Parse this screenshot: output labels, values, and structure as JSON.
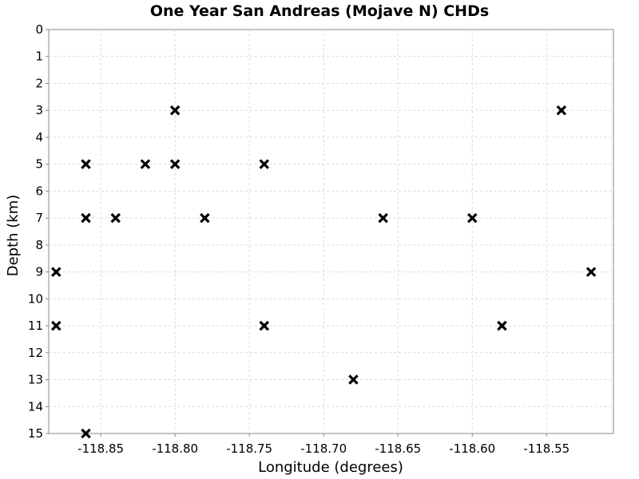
{
  "chart_data": {
    "type": "scatter",
    "title": "One Year San Andreas (Mojave N) CHDs",
    "xlabel": "Longitude (degrees)",
    "ylabel": "Depth (km)",
    "xlim": [
      -118.885,
      -118.505
    ],
    "ylim": [
      0,
      15
    ],
    "y_inverted": true,
    "grid": true,
    "marker": "x",
    "x_ticks": [
      -118.85,
      -118.8,
      -118.75,
      -118.7,
      -118.65,
      -118.6,
      -118.55
    ],
    "x_tick_labels": [
      "-118.85",
      "-118.80",
      "-118.75",
      "-118.70",
      "-118.65",
      "-118.60",
      "-118.55"
    ],
    "y_ticks": [
      0,
      1,
      2,
      3,
      4,
      5,
      6,
      7,
      8,
      9,
      10,
      11,
      12,
      13,
      14,
      15
    ],
    "y_tick_labels": [
      "0",
      "1",
      "2",
      "3",
      "4",
      "5",
      "6",
      "7",
      "8",
      "9",
      "10",
      "11",
      "12",
      "13",
      "14",
      "15"
    ],
    "points": [
      {
        "x": -118.8,
        "y": 3
      },
      {
        "x": -118.54,
        "y": 3
      },
      {
        "x": -118.86,
        "y": 5
      },
      {
        "x": -118.82,
        "y": 5
      },
      {
        "x": -118.8,
        "y": 5
      },
      {
        "x": -118.74,
        "y": 5
      },
      {
        "x": -118.86,
        "y": 7
      },
      {
        "x": -118.84,
        "y": 7
      },
      {
        "x": -118.78,
        "y": 7
      },
      {
        "x": -118.66,
        "y": 7
      },
      {
        "x": -118.6,
        "y": 7
      },
      {
        "x": -118.88,
        "y": 9
      },
      {
        "x": -118.52,
        "y": 9
      },
      {
        "x": -118.88,
        "y": 11
      },
      {
        "x": -118.74,
        "y": 11
      },
      {
        "x": -118.58,
        "y": 11
      },
      {
        "x": -118.68,
        "y": 13
      },
      {
        "x": -118.86,
        "y": 15
      }
    ]
  }
}
